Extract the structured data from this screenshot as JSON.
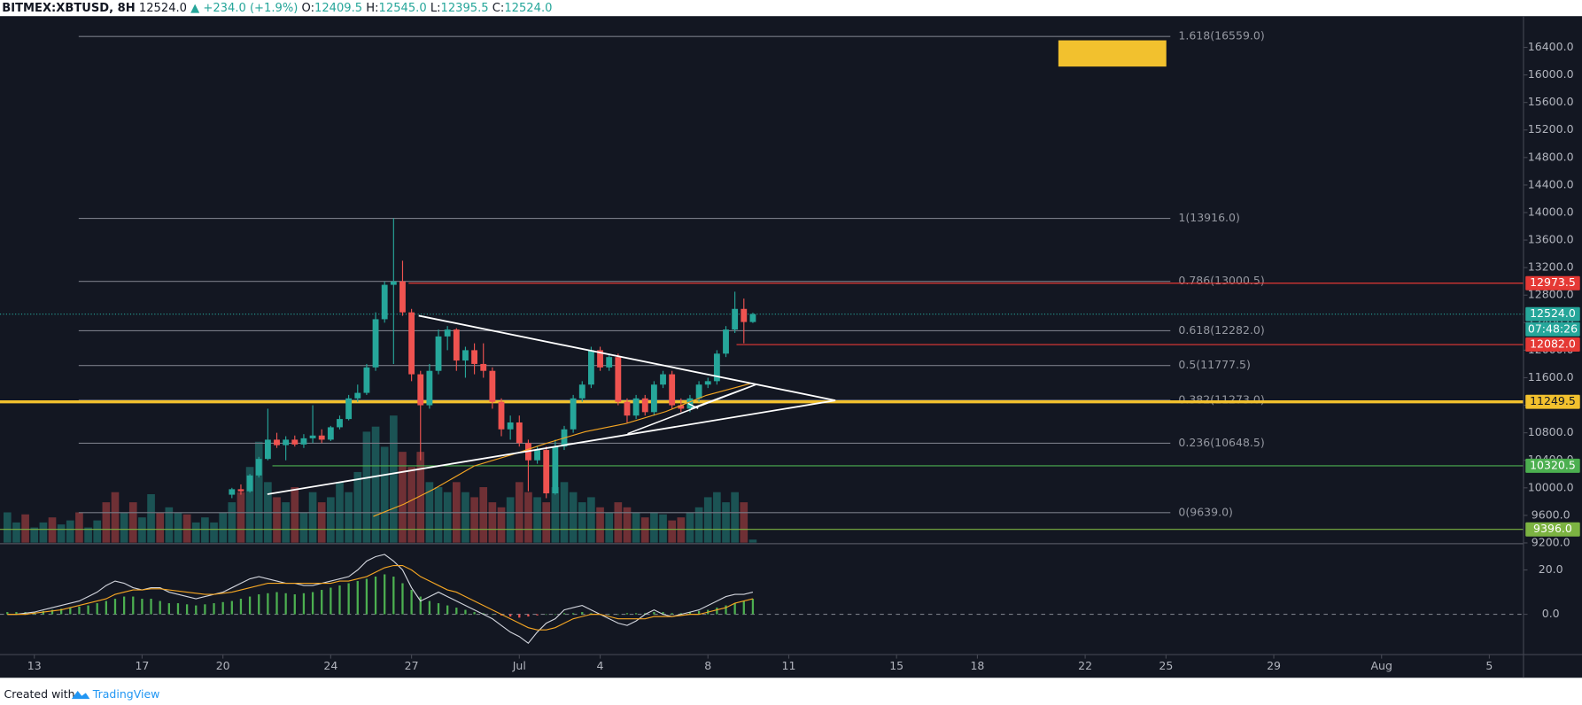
{
  "chart_data": {
    "type": "candlestick",
    "header": {
      "symbol": "BITMEX:XBTUSD, 8H",
      "price": "12524.0",
      "change": "▲ +234.0 (+1.9%)",
      "open_label": "O:",
      "open": "12409.5",
      "high_label": "H:",
      "high": "12545.0",
      "low_label": "L:",
      "low": "12395.5",
      "close_label": "C:",
      "close": "12524.0"
    },
    "footer": {
      "prefix": "Created with",
      "brand": "TradingView"
    },
    "xlim": [
      -0.82,
      168.8
    ],
    "xticks": [
      {
        "value": 3,
        "label": "13"
      },
      {
        "value": 15,
        "label": "17"
      },
      {
        "value": 24,
        "label": "20"
      },
      {
        "value": 36,
        "label": "24"
      },
      {
        "value": 45,
        "label": "27"
      },
      {
        "value": 57,
        "label": "Jul"
      },
      {
        "value": 66,
        "label": "4"
      },
      {
        "value": 78,
        "label": "8"
      },
      {
        "value": 87,
        "label": "11"
      },
      {
        "value": 99,
        "label": "15"
      },
      {
        "value": 108,
        "label": "18"
      },
      {
        "value": 120,
        "label": "22"
      },
      {
        "value": 129,
        "label": "25"
      },
      {
        "value": 141,
        "label": "29"
      },
      {
        "value": 153,
        "label": "Aug"
      },
      {
        "value": 165,
        "label": "5"
      }
    ],
    "ylim": [
      9204,
      16854
    ],
    "yticks": [
      {
        "value": 16400,
        "label": "16400.0"
      },
      {
        "value": 16000,
        "label": "16000.0"
      },
      {
        "value": 15600,
        "label": "15600.0"
      },
      {
        "value": 15200,
        "label": "15200.0"
      },
      {
        "value": 14800,
        "label": "14800.0"
      },
      {
        "value": 14400,
        "label": "14400.0"
      },
      {
        "value": 14000,
        "label": "14000.0"
      },
      {
        "value": 13600,
        "label": "13600.0"
      },
      {
        "value": 13200,
        "label": "13200.0"
      },
      {
        "value": 12800,
        "label": "12800.0"
      },
      {
        "value": 12400,
        "label": "12400.0"
      },
      {
        "value": 12000,
        "label": "12000.0"
      },
      {
        "value": 11600,
        "label": "11600.0"
      },
      {
        "value": 11200,
        "label": "11200.0"
      },
      {
        "value": 10800,
        "label": "10800.0"
      },
      {
        "value": 10400,
        "label": "10400.0"
      },
      {
        "value": 10000,
        "label": "10000.0"
      },
      {
        "value": 9600,
        "label": "9600.0"
      },
      {
        "value": 9200,
        "label": "9200.0"
      }
    ],
    "up_color": "#26a69a",
    "down_color": "#ef5350",
    "candles": [
      null,
      null,
      null,
      null,
      null,
      null,
      null,
      null,
      null,
      null,
      null,
      null,
      null,
      null,
      null,
      null,
      null,
      null,
      null,
      null,
      null,
      null,
      null,
      null,
      null,
      [
        9900,
        10000,
        9850,
        9980
      ],
      [
        9980,
        10050,
        9900,
        9950
      ],
      [
        9950,
        10200,
        9930,
        10180
      ],
      [
        10180,
        10450,
        10150,
        10420
      ],
      [
        10420,
        11150,
        10400,
        10700
      ],
      [
        10700,
        10800,
        10580,
        10620
      ],
      [
        10620,
        10750,
        10400,
        10700
      ],
      [
        10700,
        10760,
        10600,
        10630
      ],
      [
        10630,
        10780,
        10580,
        10720
      ],
      [
        10720,
        11200,
        10650,
        10760
      ],
      [
        10760,
        10850,
        10650,
        10700
      ],
      [
        10700,
        10900,
        10680,
        10880
      ],
      [
        10880,
        11050,
        10850,
        11000
      ],
      [
        11000,
        11350,
        10980,
        11300
      ],
      [
        11300,
        11500,
        11250,
        11380
      ],
      [
        11380,
        11800,
        11350,
        11750
      ],
      [
        11750,
        12550,
        11700,
        12450
      ],
      [
        12450,
        13000,
        12400,
        12950
      ],
      [
        12950,
        13916,
        11800,
        13000
      ],
      [
        13000,
        13300,
        12500,
        12550
      ],
      [
        12550,
        12600,
        11550,
        11650
      ],
      [
        11650,
        11700,
        10400,
        11200
      ],
      [
        11200,
        11800,
        11150,
        11700
      ],
      [
        11700,
        12300,
        11650,
        12200
      ],
      [
        12200,
        12350,
        12000,
        12300
      ],
      [
        12300,
        12320,
        11700,
        11850
      ],
      [
        11850,
        12050,
        11600,
        12000
      ],
      [
        12000,
        12100,
        11650,
        11800
      ],
      [
        11800,
        12100,
        11600,
        11700
      ],
      [
        11700,
        11750,
        11150,
        11250
      ],
      [
        11250,
        11300,
        10750,
        10850
      ],
      [
        10850,
        11050,
        10700,
        10950
      ],
      [
        10950,
        11050,
        10600,
        10650
      ],
      [
        10650,
        10700,
        9950,
        10400
      ],
      [
        10400,
        10600,
        10350,
        10550
      ],
      [
        10550,
        10600,
        9850,
        9920
      ],
      [
        9920,
        10700,
        9900,
        10600
      ],
      [
        10600,
        10900,
        10550,
        10850
      ],
      [
        10850,
        11350,
        10800,
        11300
      ],
      [
        11300,
        11550,
        11250,
        11500
      ],
      [
        11500,
        12050,
        11450,
        12000
      ],
      [
        12000,
        12050,
        11700,
        11750
      ],
      [
        11750,
        11950,
        11700,
        11900
      ],
      [
        11900,
        11950,
        11200,
        11250
      ],
      [
        11250,
        11300,
        10950,
        11050
      ],
      [
        11050,
        11350,
        11000,
        11300
      ],
      [
        11300,
        11350,
        11050,
        11100
      ],
      [
        11100,
        11550,
        11050,
        11500
      ],
      [
        11500,
        11700,
        11450,
        11650
      ],
      [
        11650,
        11700,
        11150,
        11200
      ],
      [
        11200,
        11300,
        11100,
        11150
      ],
      [
        11150,
        11350,
        11100,
        11300
      ],
      [
        11300,
        11550,
        11250,
        11500
      ],
      [
        11500,
        11600,
        11450,
        11550
      ],
      [
        11550,
        12000,
        11500,
        11950
      ],
      [
        11950,
        12350,
        11900,
        12300
      ],
      [
        12300,
        12850,
        12250,
        12600
      ],
      [
        12600,
        12750,
        12100,
        12409.5
      ],
      [
        12409.5,
        12545,
        12395.5,
        12524
      ]
    ],
    "volume": {
      "values": [
        30,
        20,
        28,
        15,
        20,
        25,
        18,
        22,
        30,
        15,
        22,
        40,
        50,
        30,
        40,
        25,
        48,
        30,
        35,
        30,
        28,
        20,
        25,
        20,
        30,
        40,
        50,
        75,
        100,
        60,
        45,
        40,
        55,
        30,
        50,
        40,
        45,
        60,
        50,
        70,
        110,
        115,
        95,
        126,
        90,
        75,
        90,
        60,
        55,
        50,
        60,
        50,
        45,
        55,
        40,
        35,
        45,
        60,
        50,
        45,
        40,
        55,
        60,
        50,
        40,
        45,
        35,
        30,
        40,
        35,
        30,
        25,
        30,
        28,
        22,
        25,
        30,
        35,
        45,
        50,
        40,
        50,
        40,
        3
      ],
      "rising": [
        true,
        true,
        false,
        true,
        true,
        false,
        true,
        true,
        false,
        true,
        true,
        false,
        false,
        true,
        false,
        true,
        true,
        false,
        true,
        true,
        false,
        true,
        true,
        true,
        true,
        true,
        false,
        true,
        true,
        true,
        false,
        true,
        false,
        true,
        true,
        false,
        true,
        true,
        true,
        true,
        true,
        true,
        true,
        true,
        false,
        false,
        false,
        true,
        true,
        true,
        false,
        true,
        false,
        false,
        false,
        false,
        true,
        false,
        false,
        true,
        false,
        true,
        true,
        true,
        true,
        true,
        false,
        true,
        false,
        false,
        true,
        false,
        true,
        true,
        false,
        false,
        true,
        true,
        true,
        true,
        true,
        true,
        false,
        true
      ]
    },
    "fib_levels": [
      {
        "value": 16559,
        "label": "1.618(16559.0)"
      },
      {
        "value": 13916,
        "label": "1(13916.0)"
      },
      {
        "value": 13000.5,
        "label": "0.786(13000.5)"
      },
      {
        "value": 12282,
        "label": "0.618(12282.0)"
      },
      {
        "value": 11777.5,
        "label": "0.5(11777.5)"
      },
      {
        "value": 11273,
        "label": "0.382(11273.0)"
      },
      {
        "value": 10648.5,
        "label": "0.236(10648.5)"
      },
      {
        "value": 9639,
        "label": "0(9639.0)"
      }
    ],
    "price_lines": [
      {
        "value": 12973.5,
        "label": "12973.5",
        "color": "#e53935",
        "text_color": "#ffffff"
      },
      {
        "value": 12524,
        "label": "12524.0",
        "color": "#26a69a",
        "text_color": "#ffffff",
        "countdown": "07:48:26"
      },
      {
        "value": 12082,
        "label": "12082.0",
        "color": "#e53935",
        "text_color": "#ffffff"
      },
      {
        "value": 11249.5,
        "label": "11249.5",
        "color": "#f2c12e",
        "text_color": "#131722"
      },
      {
        "value": 10320.5,
        "label": "10320.5",
        "color": "#4caf50",
        "text_color": "#ffffff"
      },
      {
        "value": 9396,
        "label": "9396.0",
        "color": "#7cb342",
        "text_color": "#ffffff"
      }
    ],
    "indicator": {
      "ylim": [
        -17.7,
        31.4
      ],
      "yticks": [
        {
          "value": 20,
          "label": "20.0"
        },
        {
          "value": 0,
          "label": "0.0"
        }
      ],
      "histogram": [
        1,
        1,
        1,
        1,
        1.5,
        2,
        2.5,
        3,
        3.5,
        4,
        5,
        6,
        7,
        8,
        8,
        7,
        7,
        6,
        5,
        5,
        4.5,
        4,
        4.5,
        5,
        5.5,
        6,
        7,
        8,
        9,
        9.5,
        10,
        9.5,
        9,
        9.5,
        10,
        11,
        12,
        13,
        14,
        15,
        16,
        17,
        18,
        17,
        14,
        11,
        8,
        6,
        5,
        4,
        3,
        2,
        1,
        0.5,
        0,
        -0.5,
        -1,
        -1.5,
        -1,
        -0.5,
        0,
        0,
        0.5,
        0.5,
        1,
        0.5,
        0,
        0,
        0,
        0.5,
        0.5,
        0.5,
        1,
        1,
        0.5,
        0.5,
        1,
        1.5,
        2,
        3,
        4,
        5,
        6,
        7
      ],
      "pos_color": "#4caf50",
      "neg_color": "#ef5350",
      "series": [
        {
          "color": "#d1d4dc",
          "values": [
            0,
            0,
            0.5,
            1,
            2,
            3,
            4,
            5,
            6,
            8,
            10,
            13,
            15,
            14,
            12,
            11,
            12,
            12,
            10,
            9,
            8,
            7,
            8,
            9,
            10,
            12,
            14,
            16,
            17,
            16,
            15,
            14,
            14,
            13,
            13,
            14,
            15,
            16,
            17,
            20,
            24,
            26,
            27,
            24,
            20,
            12,
            6,
            8,
            10,
            8,
            6,
            4,
            2,
            0,
            -2,
            -5,
            -8,
            -10,
            -13,
            -8,
            -4,
            -2,
            2,
            3,
            4,
            2,
            0,
            -2,
            -4,
            -5,
            -3,
            0,
            2,
            0,
            -1,
            0,
            1,
            2,
            4,
            6,
            8,
            9,
            9,
            10
          ]
        },
        {
          "color": "#f5a623",
          "values": [
            0,
            0,
            0,
            0.5,
            1,
            1.5,
            2,
            3,
            4,
            5,
            6,
            7,
            9,
            10,
            11,
            11,
            11.5,
            11.5,
            11,
            10.5,
            10,
            9.5,
            9,
            9,
            9.5,
            10,
            11,
            12,
            13,
            14,
            14,
            14,
            14,
            14,
            14,
            14,
            14,
            15,
            15,
            16,
            17,
            19,
            21,
            22,
            22,
            20,
            17,
            15,
            13,
            11,
            10,
            8,
            6,
            4,
            2,
            0,
            -2,
            -4,
            -6,
            -7,
            -7,
            -6,
            -4,
            -2,
            -1,
            0,
            0,
            -1,
            -2,
            -2,
            -2,
            -2,
            -1,
            -1,
            -1,
            -0.5,
            0,
            0,
            1,
            2,
            3,
            5,
            6,
            7
          ]
        }
      ]
    }
  }
}
